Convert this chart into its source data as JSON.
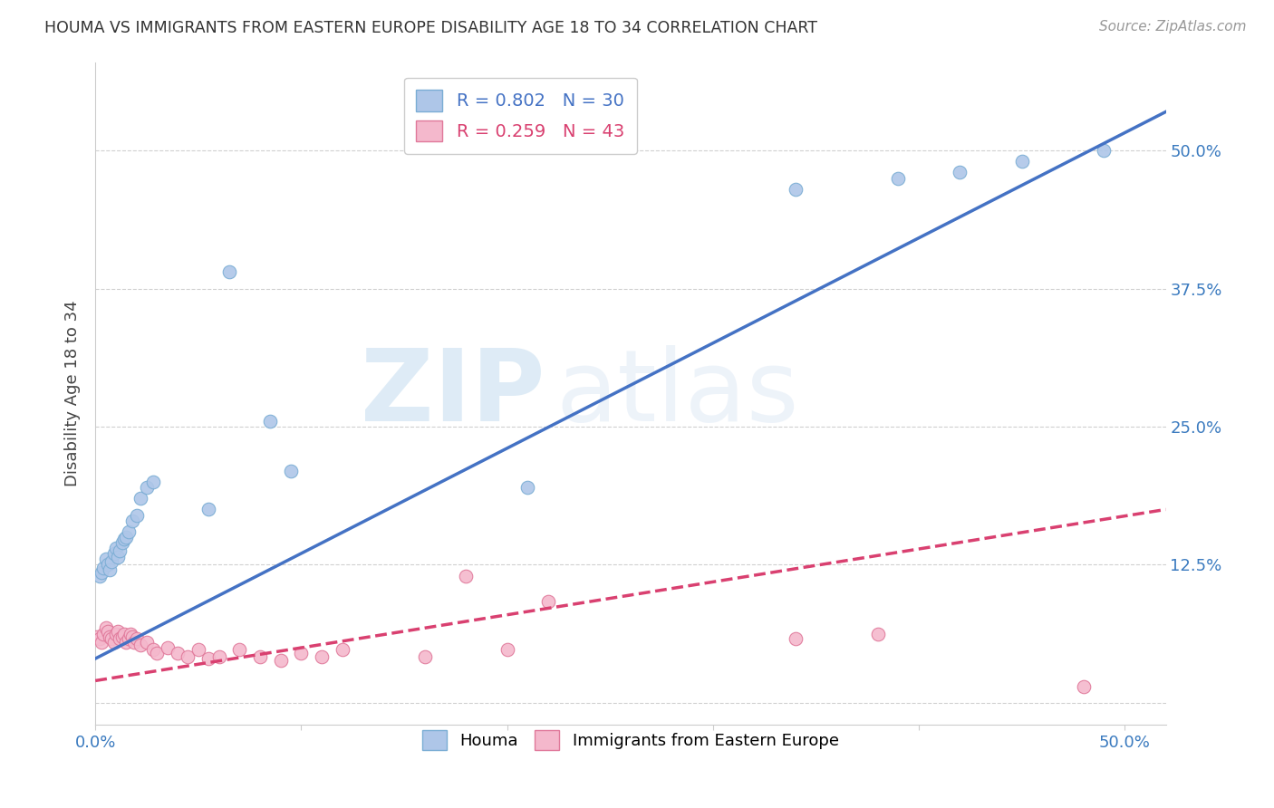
{
  "title": "HOUMA VS IMMIGRANTS FROM EASTERN EUROPE DISABILITY AGE 18 TO 34 CORRELATION CHART",
  "source": "Source: ZipAtlas.com",
  "ylabel": "Disability Age 18 to 34",
  "xlim": [
    0.0,
    0.52
  ],
  "ylim": [
    -0.02,
    0.58
  ],
  "xticks": [
    0.0,
    0.1,
    0.2,
    0.3,
    0.4,
    0.5
  ],
  "xticklabels": [
    "0.0%",
    "",
    "",
    "",
    "",
    "50.0%"
  ],
  "yticks": [
    0.0,
    0.125,
    0.25,
    0.375,
    0.5
  ],
  "yticklabels_right": [
    "",
    "12.5%",
    "25.0%",
    "37.5%",
    "50.0%"
  ],
  "houma_color": "#aec6e8",
  "houma_edge_color": "#7aadd4",
  "immigrants_color": "#f4b8cc",
  "immigrants_edge_color": "#e0789a",
  "houma_line_color": "#4472c4",
  "immigrants_line_color": "#d94070",
  "houma_R": 0.802,
  "houma_N": 30,
  "immigrants_R": 0.259,
  "immigrants_N": 43,
  "watermark_zip": "ZIP",
  "watermark_atlas": "atlas",
  "grid_color": "#d0d0d0",
  "houma_x": [
    0.002,
    0.003,
    0.004,
    0.005,
    0.006,
    0.007,
    0.008,
    0.009,
    0.01,
    0.011,
    0.012,
    0.013,
    0.014,
    0.015,
    0.016,
    0.018,
    0.02,
    0.022,
    0.025,
    0.028,
    0.055,
    0.065,
    0.085,
    0.095,
    0.21,
    0.34,
    0.39,
    0.42,
    0.45,
    0.49
  ],
  "houma_y": [
    0.115,
    0.118,
    0.122,
    0.13,
    0.125,
    0.12,
    0.128,
    0.135,
    0.14,
    0.132,
    0.138,
    0.145,
    0.148,
    0.15,
    0.155,
    0.165,
    0.17,
    0.185,
    0.195,
    0.2,
    0.175,
    0.39,
    0.255,
    0.21,
    0.195,
    0.465,
    0.475,
    0.48,
    0.49,
    0.5
  ],
  "immigrants_x": [
    0.001,
    0.002,
    0.003,
    0.004,
    0.005,
    0.006,
    0.007,
    0.008,
    0.009,
    0.01,
    0.011,
    0.012,
    0.013,
    0.014,
    0.015,
    0.016,
    0.017,
    0.018,
    0.019,
    0.02,
    0.022,
    0.025,
    0.028,
    0.03,
    0.035,
    0.04,
    0.045,
    0.05,
    0.055,
    0.06,
    0.07,
    0.08,
    0.09,
    0.1,
    0.11,
    0.12,
    0.16,
    0.18,
    0.2,
    0.22,
    0.34,
    0.38,
    0.48
  ],
  "immigrants_y": [
    0.06,
    0.058,
    0.055,
    0.062,
    0.068,
    0.065,
    0.06,
    0.058,
    0.055,
    0.062,
    0.065,
    0.058,
    0.06,
    0.062,
    0.055,
    0.058,
    0.062,
    0.06,
    0.055,
    0.058,
    0.052,
    0.055,
    0.048,
    0.045,
    0.05,
    0.045,
    0.042,
    0.048,
    0.04,
    0.042,
    0.048,
    0.042,
    0.038,
    0.045,
    0.042,
    0.048,
    0.042,
    0.115,
    0.048,
    0.092,
    0.058,
    0.062,
    0.015
  ],
  "houma_line_x": [
    0.0,
    0.52
  ],
  "houma_line_y": [
    0.04,
    0.535
  ],
  "immigrants_line_x": [
    0.0,
    0.52
  ],
  "immigrants_line_y": [
    0.02,
    0.175
  ]
}
